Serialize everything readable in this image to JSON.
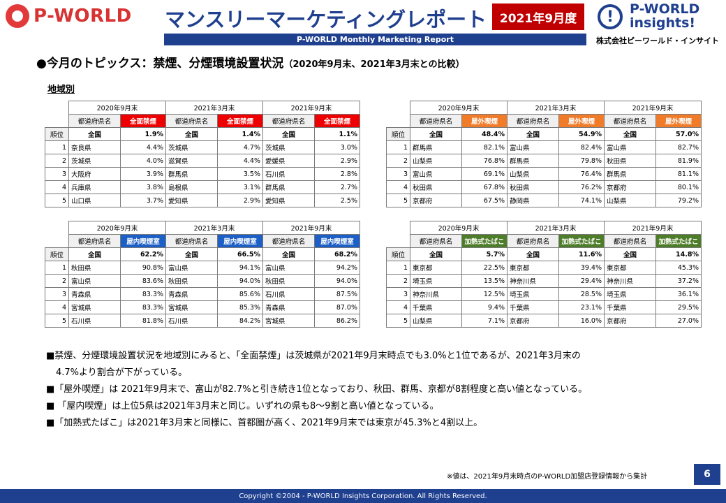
{
  "header": {
    "logo_text": "P-WORLD",
    "title": "マンスリーマーケティングレポート",
    "date_badge": "2021年9月度",
    "subtitle": "P-WORLD Monthly Marketing Report",
    "brand_line1": "P-WORLD",
    "brand_line2": "insights!",
    "brand_corp": "株式会社ピーワールド・インサイト"
  },
  "topic": {
    "main": "●今月のトピックス：禁煙、分煙環境設置状況",
    "paren": "（2020年9月末、2021年3月末との比較）"
  },
  "section_label": "地域別",
  "table_labels": {
    "rank": "順位",
    "pref_col": "都道府県名",
    "nation": "全国",
    "periods": [
      "2020年9月末",
      "2021年3月末",
      "2021年9月末"
    ]
  },
  "tables": [
    {
      "metric": "全面禁煙",
      "color": "#ee0000",
      "nation": [
        "1.9%",
        "1.4%",
        "1.1%"
      ],
      "rows": [
        {
          "rank": "1",
          "cells": [
            [
              "奈良県",
              "4.4%"
            ],
            [
              "茨城県",
              "4.7%"
            ],
            [
              "茨城県",
              "3.0%"
            ]
          ]
        },
        {
          "rank": "2",
          "cells": [
            [
              "茨城県",
              "4.0%"
            ],
            [
              "滋賀県",
              "4.4%"
            ],
            [
              "愛媛県",
              "2.9%"
            ]
          ]
        },
        {
          "rank": "3",
          "cells": [
            [
              "大阪府",
              "3.9%"
            ],
            [
              "群馬県",
              "3.5%"
            ],
            [
              "石川県",
              "2.8%"
            ]
          ]
        },
        {
          "rank": "4",
          "cells": [
            [
              "兵庫県",
              "3.8%"
            ],
            [
              "島根県",
              "3.1%"
            ],
            [
              "群馬県",
              "2.7%"
            ]
          ]
        },
        {
          "rank": "5",
          "cells": [
            [
              "山口県",
              "3.7%"
            ],
            [
              "愛知県",
              "2.9%"
            ],
            [
              "愛知県",
              "2.5%"
            ]
          ]
        }
      ]
    },
    {
      "metric": "屋外喫煙",
      "color": "#f07c2a",
      "nation": [
        "48.4%",
        "54.9%",
        "57.0%"
      ],
      "rows": [
        {
          "rank": "1",
          "cells": [
            [
              "群馬県",
              "82.1%"
            ],
            [
              "富山県",
              "82.4%"
            ],
            [
              "富山県",
              "82.7%"
            ]
          ]
        },
        {
          "rank": "2",
          "cells": [
            [
              "山梨県",
              "76.8%"
            ],
            [
              "群馬県",
              "79.8%"
            ],
            [
              "秋田県",
              "81.9%"
            ]
          ]
        },
        {
          "rank": "3",
          "cells": [
            [
              "富山県",
              "69.1%"
            ],
            [
              "山梨県",
              "76.4%"
            ],
            [
              "群馬県",
              "81.1%"
            ]
          ]
        },
        {
          "rank": "4",
          "cells": [
            [
              "秋田県",
              "67.8%"
            ],
            [
              "秋田県",
              "76.2%"
            ],
            [
              "京都府",
              "80.1%"
            ]
          ]
        },
        {
          "rank": "5",
          "cells": [
            [
              "京都府",
              "67.5%"
            ],
            [
              "静岡県",
              "74.1%"
            ],
            [
              "山梨県",
              "79.2%"
            ]
          ]
        }
      ]
    },
    {
      "metric": "屋内喫煙室",
      "color": "#1c5fc6",
      "nation": [
        "62.2%",
        "66.5%",
        "68.2%"
      ],
      "rows": [
        {
          "rank": "1",
          "cells": [
            [
              "秋田県",
              "90.8%"
            ],
            [
              "富山県",
              "94.1%"
            ],
            [
              "富山県",
              "94.2%"
            ]
          ]
        },
        {
          "rank": "2",
          "cells": [
            [
              "富山県",
              "83.6%"
            ],
            [
              "秋田県",
              "94.0%"
            ],
            [
              "秋田県",
              "94.0%"
            ]
          ]
        },
        {
          "rank": "3",
          "cells": [
            [
              "青森県",
              "83.3%"
            ],
            [
              "青森県",
              "85.6%"
            ],
            [
              "石川県",
              "87.5%"
            ]
          ]
        },
        {
          "rank": "4",
          "cells": [
            [
              "宮城県",
              "83.3%"
            ],
            [
              "宮城県",
              "85.3%"
            ],
            [
              "青森県",
              "87.0%"
            ]
          ]
        },
        {
          "rank": "5",
          "cells": [
            [
              "石川県",
              "81.8%"
            ],
            [
              "石川県",
              "84.2%"
            ],
            [
              "宮城県",
              "86.2%"
            ]
          ]
        }
      ]
    },
    {
      "metric": "加熱式たばこ",
      "color": "#4e7d2a",
      "nation": [
        "5.7%",
        "11.6%",
        "14.8%"
      ],
      "rows": [
        {
          "rank": "1",
          "cells": [
            [
              "東京都",
              "22.5%"
            ],
            [
              "東京都",
              "39.4%"
            ],
            [
              "東京都",
              "45.3%"
            ]
          ]
        },
        {
          "rank": "2",
          "cells": [
            [
              "埼玉県",
              "13.5%"
            ],
            [
              "神奈川県",
              "29.4%"
            ],
            [
              "神奈川県",
              "37.2%"
            ]
          ]
        },
        {
          "rank": "3",
          "cells": [
            [
              "神奈川県",
              "12.5%"
            ],
            [
              "埼玉県",
              "28.5%"
            ],
            [
              "埼玉県",
              "36.1%"
            ]
          ]
        },
        {
          "rank": "4",
          "cells": [
            [
              "千葉県",
              "9.4%"
            ],
            [
              "千葉県",
              "23.1%"
            ],
            [
              "千葉県",
              "29.5%"
            ]
          ]
        },
        {
          "rank": "5",
          "cells": [
            [
              "山梨県",
              "7.1%"
            ],
            [
              "京都府",
              "16.0%"
            ],
            [
              "京都府",
              "27.0%"
            ]
          ]
        }
      ]
    }
  ],
  "notes": [
    "■禁煙、分煙環境設置状況を地域別にみると、「全面禁煙」は茨城県が2021年9月末時点でも3.0%と1位であるが、2021年3月末の",
    "4.7%より割合が下がっている。",
    "■「屋外喫煙」は 2021年9月末で、富山が82.7%と引き続き1位となっており、秋田、群馬、京都が8割程度と高い値となっている。",
    "■ 「屋内喫煙」は上位5県は2021年3月末と同じ。いずれの県も8～9割と高い値となっている。",
    "■「加熱式たばこ」は2021年3月末と同様に、首都圏が高く、2021年9月末では東京が45.3%と4割以上。"
  ],
  "footnote": "※値は、2021年9月末時点のP-WORLD加盟店登録情報から集計",
  "page_number": "6",
  "copyright": "Copyright ©2004 -  P-WORLD Insights Corporation. All Rights Reserved."
}
